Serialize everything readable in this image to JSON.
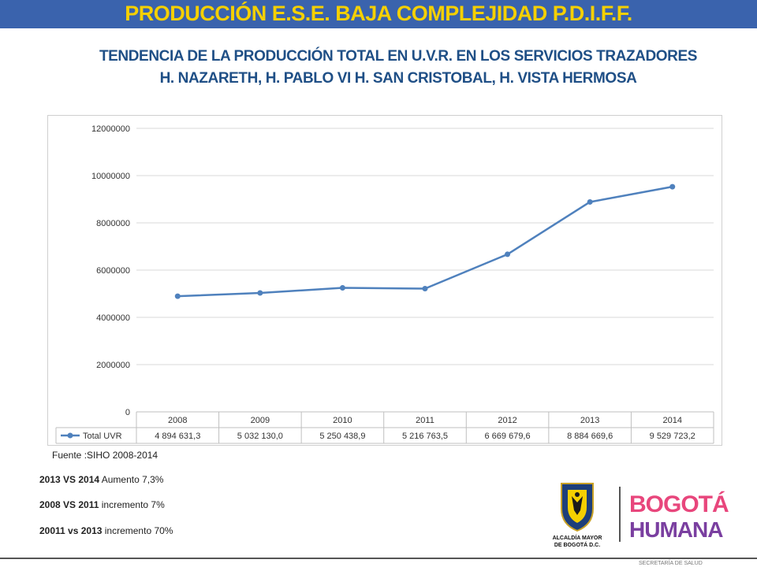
{
  "header": {
    "title": "PRODUCCIÓN  E.S.E.  BAJA  COMPLEJIDAD P.D.I.F.F.",
    "subtitle": "TENDENCIA DE LA PRODUCCIÓN TOTAL EN U.V.R. EN LOS SERVICIOS TRAZADORES H. NAZARETH, H. PABLO VI H. SAN CRISTOBAL, H. VISTA HERMOSA"
  },
  "colors": {
    "header_bar": "#3a63ad",
    "title": "#f5d000",
    "subtitle": "#1f4f86",
    "series": "#4f81bd"
  },
  "chart_data": {
    "type": "line",
    "categories": [
      "2008",
      "2009",
      "2010",
      "2011",
      "2012",
      "2013",
      "2014"
    ],
    "series": [
      {
        "name": "Total UVR",
        "values": [
          4894631.3,
          5032130.0,
          5250438.9,
          5216763.5,
          6669679.6,
          8884669.6,
          9529723.2
        ]
      }
    ],
    "table_labels": [
      "4 894 631,3",
      "5 032 130,0",
      "5 250 438,9",
      "5 216 763,5",
      "6 669 679,6",
      "8 884 669,6",
      "9 529 723,2"
    ],
    "yticks": [
      "0",
      "2000000",
      "4000000",
      "6000000",
      "8000000",
      "10000000",
      "12000000"
    ],
    "ylim": [
      0,
      12000000
    ],
    "grid": true,
    "legend": "data-table"
  },
  "footer": {
    "source": "Fuente :SIHO 2008-2014",
    "notes": [
      {
        "bold": "2013 VS 2014",
        "text": "  Aumento 7,3%"
      },
      {
        "bold": "2008 VS 2011",
        "text": " incremento 7%"
      },
      {
        "bold": "20011 vs 2013",
        "text": " incremento  70%"
      }
    ]
  },
  "logos": {
    "alcaldia_line1": "ALCALDÍA MAYOR",
    "alcaldia_line2": "DE BOGOTÁ D.C.",
    "bogota_word": "BOGOTÁ",
    "humana_word": "HUMANA",
    "secretaria": "SECRETARÍA DE SALUD"
  }
}
